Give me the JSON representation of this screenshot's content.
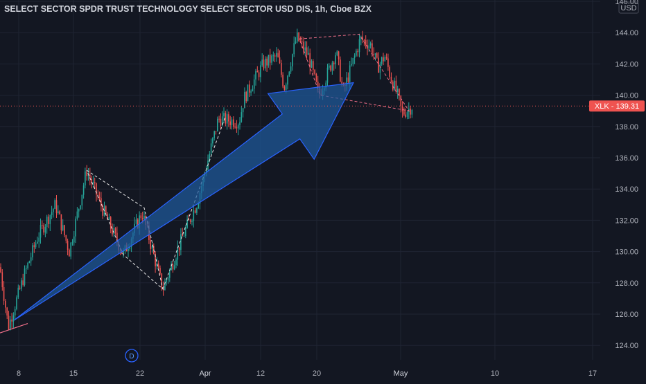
{
  "header": {
    "title": "SELECT SECTOR SPDR TRUST TECHNOLOGY SELECT SECTOR USD DIS, 1h, Cboe BZX"
  },
  "currency_badge": "USD",
  "price_tag": {
    "symbol": "XLK",
    "value": "139.31",
    "label": "XLK - 139.31"
  },
  "event_marker": {
    "label": "D"
  },
  "colors": {
    "background": "#131722",
    "grid": "#1f2433",
    "bull": "#26a69a",
    "bear": "#ef5350",
    "arrow_fill": "#1e5a9c",
    "arrow_stroke": "#2962ff",
    "price_line": "#ef5350",
    "support_line": "#ef6f8a",
    "axis_text": "#b2b5be"
  },
  "chart_data": {
    "type": "candlestick",
    "timeframe": "1h",
    "x_ticks": [
      "8",
      "15",
      "22",
      "Apr",
      "12",
      "20",
      "May",
      "10",
      "17"
    ],
    "y_ticks": [
      "146.00",
      "144.00",
      "142.00",
      "140.00",
      "138.00",
      "136.00",
      "134.00",
      "132.00",
      "130.00",
      "128.00",
      "126.00",
      "124.00"
    ],
    "ylim": [
      123,
      146.5
    ],
    "last_price": 139.31,
    "price_path_segments": [
      [
        0,
        129
      ],
      [
        12,
        125.2
      ],
      [
        35,
        128.5
      ],
      [
        55,
        131
      ],
      [
        80,
        133
      ],
      [
        100,
        130
      ],
      [
        125,
        135.2
      ],
      [
        150,
        132.5
      ],
      [
        178,
        129.8
      ],
      [
        205,
        132.5
      ],
      [
        235,
        127.6
      ],
      [
        262,
        130.8
      ],
      [
        285,
        133.2
      ],
      [
        315,
        138.5
      ],
      [
        345,
        138.3
      ],
      [
        352,
        139.8
      ],
      [
        380,
        142
      ],
      [
        400,
        142.5
      ],
      [
        410,
        140.5
      ],
      [
        428,
        143.7
      ],
      [
        445,
        142.5
      ],
      [
        460,
        140
      ],
      [
        485,
        142.8
      ],
      [
        495,
        140.2
      ],
      [
        520,
        143.6
      ],
      [
        535,
        143.2
      ],
      [
        545,
        141.8
      ],
      [
        555,
        142.5
      ],
      [
        565,
        141
      ],
      [
        575,
        139.8
      ],
      [
        580,
        138.8
      ],
      [
        595,
        139.3
      ]
    ],
    "drawings": {
      "channels": [
        {
          "points": [
            [
              125,
              135.2
            ],
            [
              208,
              132.8
            ],
            [
              235,
              127.6
            ],
            [
              178,
              129.8
            ],
            [
              125,
              135.2
            ]
          ]
        },
        {
          "points": [
            [
              432,
              143.6
            ],
            [
              518,
              143.9
            ],
            [
              590,
              139.0
            ],
            [
              462,
              140.0
            ],
            [
              432,
              143.6
            ]
          ]
        }
      ],
      "trend_lines": [
        {
          "from": [
            235,
            127.6
          ],
          "to": [
            325,
            138.6
          ]
        },
        {
          "from": [
            0,
            124.8
          ],
          "to": [
            40,
            125.4
          ]
        }
      ],
      "arrow": {
        "from": [
          20,
          125.6
        ],
        "to": [
          510,
          140.8
        ]
      }
    }
  }
}
